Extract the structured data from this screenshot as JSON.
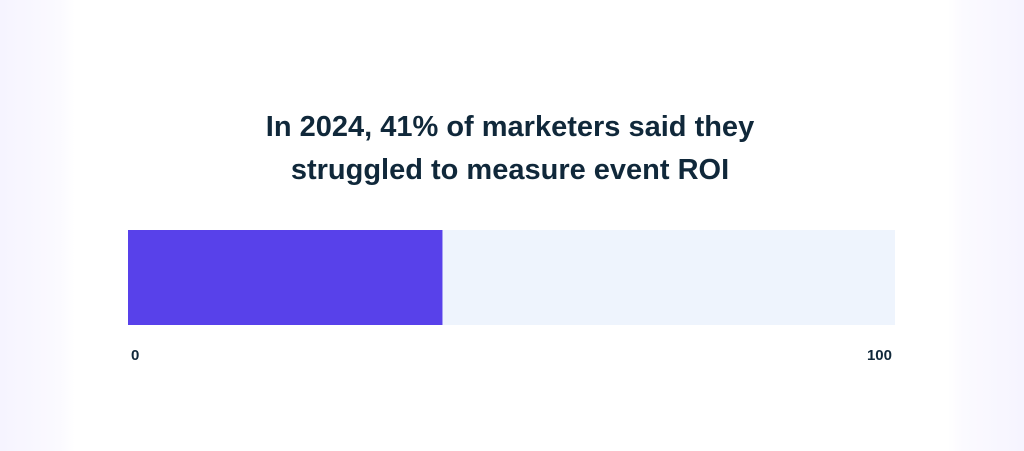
{
  "chart_data": {
    "type": "bar",
    "orientation": "horizontal",
    "title": "In 2024, 41% of marketers said they\nstruggled to measure event ROI",
    "values": [
      41
    ],
    "color": "#5841ea",
    "track_color": "#eef4fd",
    "xlim": [
      0,
      100
    ],
    "xticks": [
      0,
      100
    ]
  }
}
